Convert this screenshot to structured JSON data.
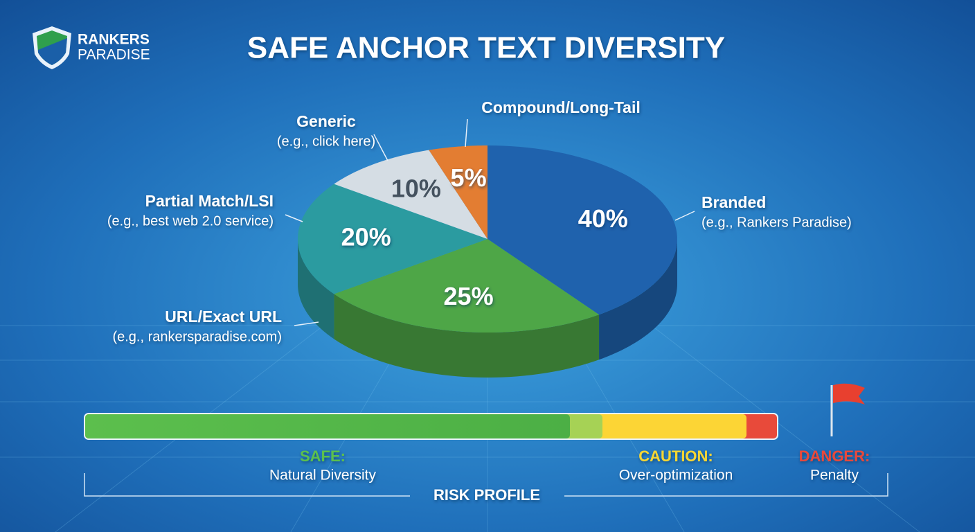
{
  "logo": {
    "line1": "RANKERS",
    "line2": "PARADISE"
  },
  "chart_data": {
    "type": "pie",
    "title": "SAFE ANCHOR TEXT DIVERSITY",
    "categories": [
      "Branded",
      "URL/Exact URL",
      "Partial Match/LSI",
      "Generic",
      "Compound/Long-Tail"
    ],
    "examples": [
      "(e.g., Rankers Paradise)",
      "(e.g., rankersparadise.com)",
      "(e.g., best web 2.0 service)",
      "(e.g., click here)",
      null
    ],
    "values": [
      40,
      25,
      20,
      10,
      5
    ],
    "value_labels": [
      "40%",
      "25%",
      "20%",
      "10%",
      "5%"
    ],
    "colors": [
      "#1f62ad",
      "#4ea647",
      "#2b9ba0",
      "#d5dde4",
      "#e37d32"
    ]
  },
  "risk_profile": {
    "title": "RISK PROFILE",
    "zones": [
      {
        "name": "SAFE:",
        "description": "Natural Diversity"
      },
      {
        "name": "CAUTION:",
        "description": "Over-optimization"
      },
      {
        "name": "DANGER:",
        "description": "Penalty"
      }
    ]
  }
}
